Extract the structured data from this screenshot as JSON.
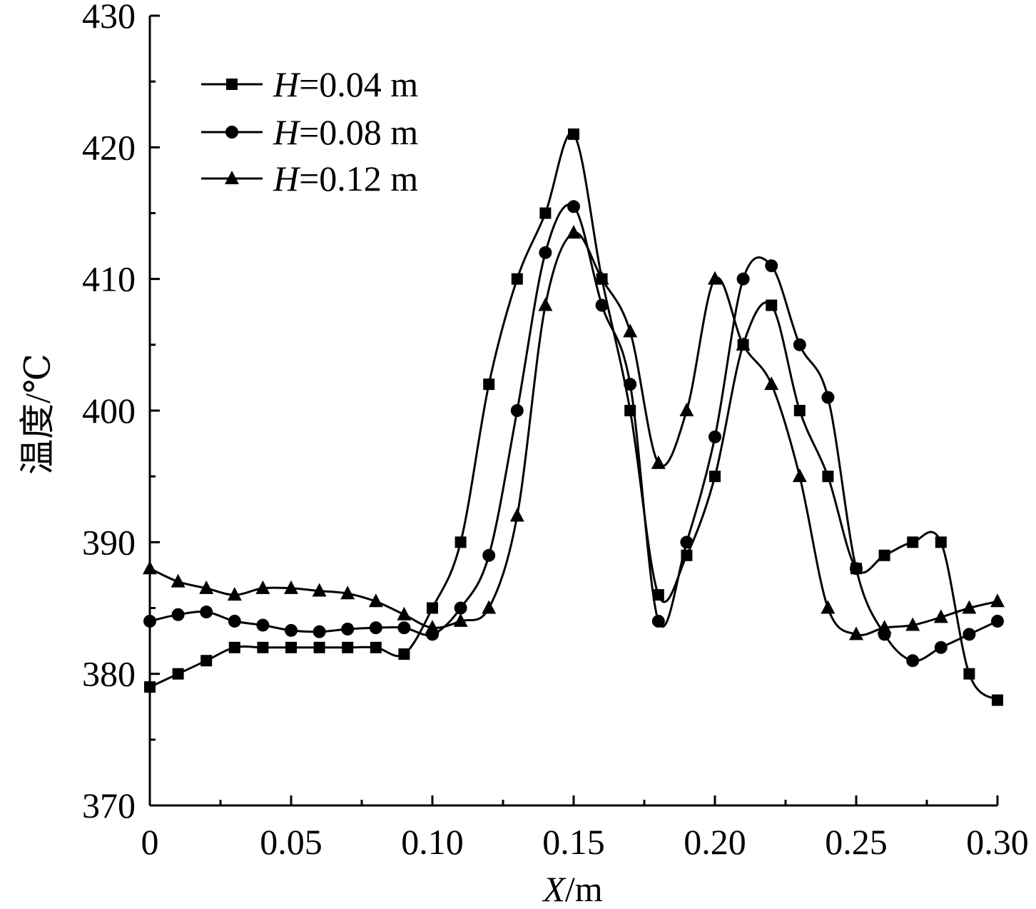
{
  "chart_data": {
    "type": "line",
    "title": "",
    "xlabel": {
      "var": "X",
      "unit": "/m"
    },
    "ylabel": "温度/℃",
    "xlim": [
      0,
      0.3
    ],
    "ylim": [
      370,
      430
    ],
    "xticks": [
      0,
      0.05,
      0.1,
      0.15,
      0.2,
      0.25,
      0.3
    ],
    "xtick_labels": [
      "0",
      "0.05",
      "0.10",
      "0.15",
      "0.20",
      "0.25",
      "0.30"
    ],
    "yticks": [
      370,
      380,
      390,
      400,
      410,
      420,
      430
    ],
    "ytick_labels": [
      "370",
      "380",
      "390",
      "400",
      "410",
      "420",
      "430"
    ],
    "grid": false,
    "legend_position": "top-left",
    "x": [
      0,
      0.01,
      0.02,
      0.03,
      0.04,
      0.05,
      0.06,
      0.07,
      0.08,
      0.09,
      0.1,
      0.11,
      0.12,
      0.13,
      0.14,
      0.15,
      0.16,
      0.17,
      0.18,
      0.19,
      0.2,
      0.21,
      0.22,
      0.23,
      0.24,
      0.25,
      0.26,
      0.27,
      0.28,
      0.29,
      0.3
    ],
    "series": [
      {
        "name": "H=0.04 m",
        "legend_var": "H",
        "legend_value": "=0.04 m",
        "marker": "square",
        "values": [
          379,
          380,
          381,
          382,
          382,
          382,
          382,
          382,
          382,
          381.5,
          385,
          390,
          402,
          410,
          415,
          421,
          410,
          400,
          386,
          389,
          395,
          405,
          408,
          400,
          395,
          388,
          389,
          390,
          390,
          380,
          378
        ]
      },
      {
        "name": "H=0.08 m",
        "legend_var": "H",
        "legend_value": "=0.08 m",
        "marker": "circle",
        "values": [
          384,
          384.5,
          384.7,
          384,
          383.7,
          383.3,
          383.2,
          383.4,
          383.5,
          383.5,
          383,
          385,
          389,
          400,
          412,
          415.5,
          408,
          402,
          384,
          390,
          398,
          410,
          411,
          405,
          401,
          388,
          383,
          381,
          382,
          383,
          384
        ]
      },
      {
        "name": "H=0.12 m",
        "legend_var": "H",
        "legend_value": "=0.12 m",
        "marker": "triangle",
        "values": [
          388,
          387,
          386.5,
          386,
          386.5,
          386.5,
          386.3,
          386.1,
          385.5,
          384.5,
          383.5,
          384,
          385,
          392,
          408,
          413.5,
          410,
          406,
          396,
          400,
          410,
          405,
          402,
          395,
          385,
          383,
          383.5,
          383.7,
          384.3,
          385,
          385.5
        ]
      }
    ]
  }
}
